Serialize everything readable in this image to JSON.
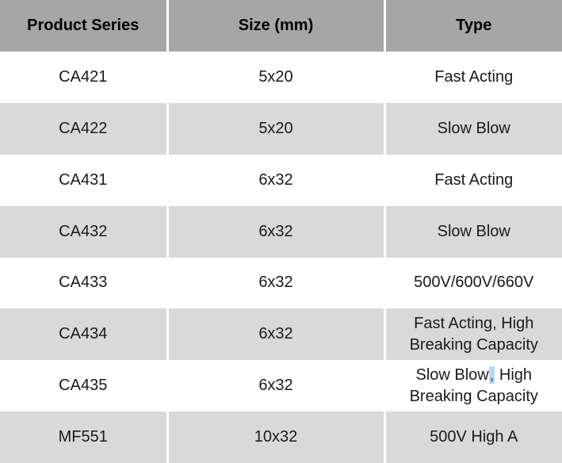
{
  "table": {
    "columns": [
      {
        "key": "series",
        "label": "Product Series"
      },
      {
        "key": "size",
        "label": "Size (mm)"
      },
      {
        "key": "type",
        "label": "Type"
      }
    ],
    "rows": [
      {
        "series": "CA421",
        "size": "5x20",
        "type_lines": [
          "Fast Acting"
        ],
        "shaded": false
      },
      {
        "series": "CA422",
        "size": "5x20",
        "type_lines": [
          "Slow Blow"
        ],
        "shaded": true
      },
      {
        "series": "CA431",
        "size": "6x32",
        "type_lines": [
          "Fast Acting"
        ],
        "shaded": false
      },
      {
        "series": "CA432",
        "size": "6x32",
        "type_lines": [
          "Slow Blow"
        ],
        "shaded": true
      },
      {
        "series": "CA433",
        "size": "6x32",
        "type_lines": [
          "500V/600V/660V"
        ],
        "shaded": false
      },
      {
        "series": "CA434",
        "size": "6x32",
        "type_lines": [
          "Fast Acting, High",
          "Breaking Capacity"
        ],
        "shaded": true
      },
      {
        "series": "CA435",
        "size": "6x32",
        "type_lines": [
          "Slow Blow, High",
          "Breaking Capacity"
        ],
        "shaded": false,
        "comma_highlighted": true
      },
      {
        "series": "MF551",
        "size": "10x32",
        "type_lines": [
          "500V High A"
        ],
        "shaded": true
      }
    ],
    "colors": {
      "header_bg": "#a6a6a6",
      "header_text": "#000000",
      "shaded_row_bg": "#d9d9d9",
      "white_row_bg": "#ffffff",
      "text": "#1a1a1a",
      "separator": "#ffffff",
      "comma_highlight_bg": "#bdd6ee",
      "comma_highlight_text": "#1f4e79"
    }
  }
}
